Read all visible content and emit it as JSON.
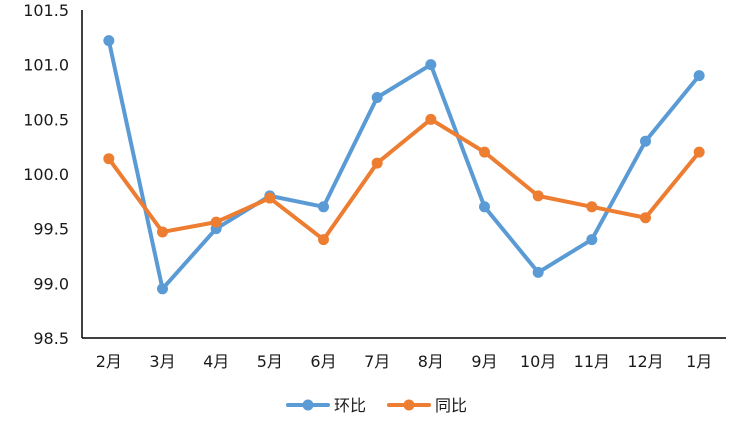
{
  "chart_data": {
    "type": "line",
    "categories": [
      "2月",
      "3月",
      "4月",
      "5月",
      "6月",
      "7月",
      "8月",
      "9月",
      "10月",
      "11月",
      "12月",
      "1月"
    ],
    "series": [
      {
        "name": "环比",
        "color": "#5b9bd5",
        "values": [
          101.22,
          98.95,
          99.5,
          99.8,
          99.7,
          100.7,
          101.0,
          99.7,
          99.1,
          99.4,
          100.3,
          100.9
        ]
      },
      {
        "name": "同比",
        "color": "#ed7d31",
        "values": [
          100.14,
          99.47,
          99.56,
          99.78,
          99.4,
          100.1,
          100.5,
          100.2,
          99.8,
          99.7,
          99.6,
          100.2
        ]
      }
    ],
    "ylim": [
      98.5,
      101.5
    ],
    "yticks": [
      "98.5",
      "99.0",
      "99.5",
      "100.0",
      "100.5",
      "101.0",
      "101.5"
    ],
    "title": "",
    "xlabel": "",
    "ylabel": "",
    "grid": false,
    "legend_position": "bottom-center"
  }
}
